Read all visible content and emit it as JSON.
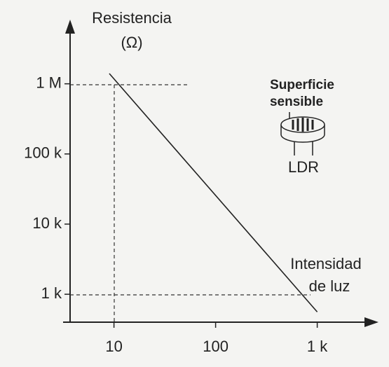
{
  "chart_data": {
    "type": "line",
    "log_scale": true,
    "grid": false,
    "color": "#222222",
    "ylabel": [
      "Resistencia",
      "(Ω)"
    ],
    "xlabel": [
      "Intensidad",
      "de luz"
    ],
    "annotations": {
      "surface": [
        "Superficie",
        "sensible"
      ],
      "device": "LDR"
    },
    "x": [
      9,
      1000
    ],
    "values": [
      1400000,
      560
    ],
    "xlim": [
      3.7,
      3700
    ],
    "ylim": [
      400,
      7000000
    ],
    "xticks": [
      10,
      100,
      {
        "value": 1000,
        "label": "1 k"
      }
    ],
    "yticks": [
      {
        "value": 1000,
        "label": "1 k"
      },
      {
        "value": 10000,
        "label": "10 k"
      },
      {
        "value": 100000,
        "label": "100 k"
      },
      {
        "value": 1000000,
        "label": "1 M"
      }
    ]
  }
}
